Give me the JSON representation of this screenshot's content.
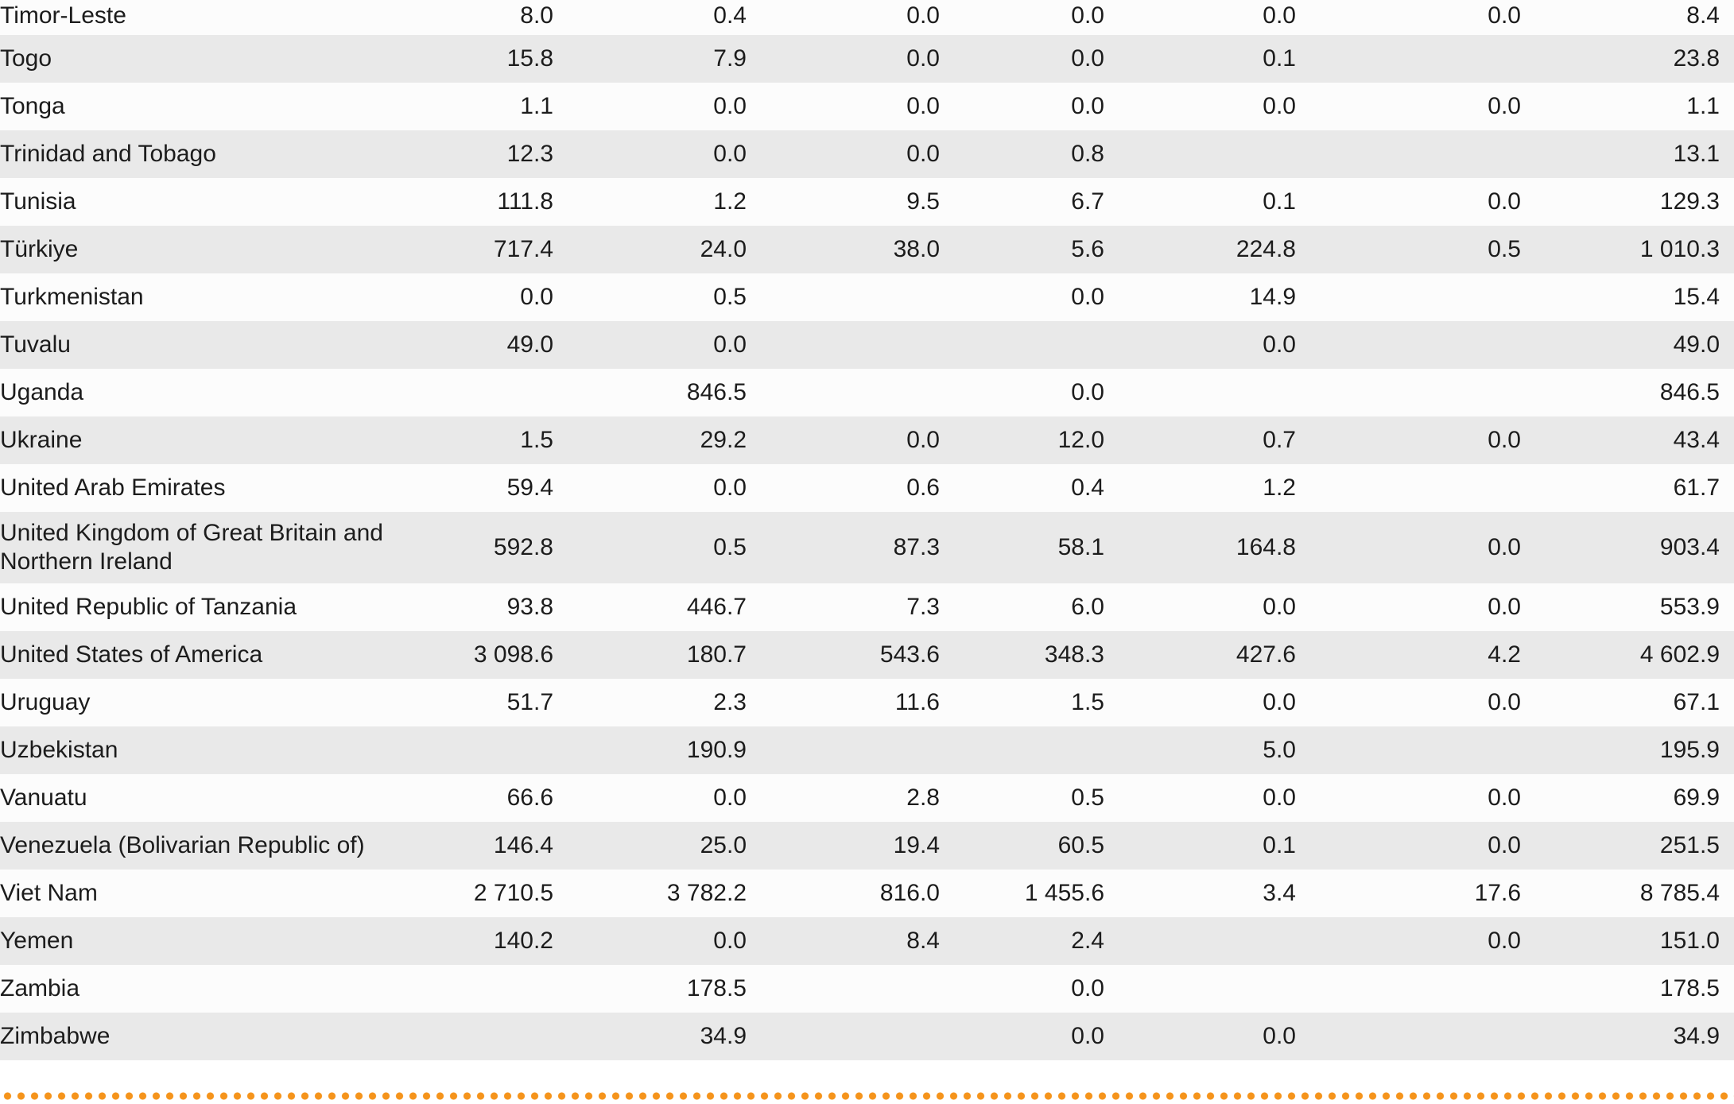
{
  "table": {
    "description": "Country data table, countries T–Z with seven right-aligned numeric columns (last column is a row total)",
    "rows": [
      {
        "country": "Timor-Leste",
        "values": [
          "8.0",
          "0.4",
          "0.0",
          "0.0",
          "0.0",
          "0.0",
          "8.4"
        ]
      },
      {
        "country": "Togo",
        "values": [
          "15.8",
          "7.9",
          "0.0",
          "0.0",
          "0.1",
          "",
          "23.8"
        ]
      },
      {
        "country": "Tonga",
        "values": [
          "1.1",
          "0.0",
          "0.0",
          "0.0",
          "0.0",
          "0.0",
          "1.1"
        ]
      },
      {
        "country": "Trinidad and Tobago",
        "values": [
          "12.3",
          "0.0",
          "0.0",
          "0.8",
          "",
          "",
          "13.1"
        ]
      },
      {
        "country": "Tunisia",
        "values": [
          "111.8",
          "1.2",
          "9.5",
          "6.7",
          "0.1",
          "0.0",
          "129.3"
        ]
      },
      {
        "country": "Türkiye",
        "values": [
          "717.4",
          "24.0",
          "38.0",
          "5.6",
          "224.8",
          "0.5",
          "1 010.3"
        ]
      },
      {
        "country": "Turkmenistan",
        "values": [
          "0.0",
          "0.5",
          "",
          "0.0",
          "14.9",
          "",
          "15.4"
        ]
      },
      {
        "country": "Tuvalu",
        "values": [
          "49.0",
          "0.0",
          "",
          "",
          "0.0",
          "",
          "49.0"
        ]
      },
      {
        "country": "Uganda",
        "values": [
          "",
          "846.5",
          "",
          "0.0",
          "",
          "",
          "846.5"
        ]
      },
      {
        "country": "Ukraine",
        "values": [
          "1.5",
          "29.2",
          "0.0",
          "12.0",
          "0.7",
          "0.0",
          "43.4"
        ]
      },
      {
        "country": "United Arab Emirates",
        "values": [
          "59.4",
          "0.0",
          "0.6",
          "0.4",
          "1.2",
          "",
          "61.7"
        ]
      },
      {
        "country": "United Kingdom of Great Britain and Northern Ireland",
        "values": [
          "592.8",
          "0.5",
          "87.3",
          "58.1",
          "164.8",
          "0.0",
          "903.4"
        ]
      },
      {
        "country": "United Republic of Tanzania",
        "values": [
          "93.8",
          "446.7",
          "7.3",
          "6.0",
          "0.0",
          "0.0",
          "553.9"
        ]
      },
      {
        "country": "United States of America",
        "values": [
          "3 098.6",
          "180.7",
          "543.6",
          "348.3",
          "427.6",
          "4.2",
          "4 602.9"
        ]
      },
      {
        "country": "Uruguay",
        "values": [
          "51.7",
          "2.3",
          "11.6",
          "1.5",
          "0.0",
          "0.0",
          "67.1"
        ]
      },
      {
        "country": "Uzbekistan",
        "values": [
          "",
          "190.9",
          "",
          "",
          "5.0",
          "",
          "195.9"
        ]
      },
      {
        "country": "Vanuatu",
        "values": [
          "66.6",
          "0.0",
          "2.8",
          "0.5",
          "0.0",
          "0.0",
          "69.9"
        ]
      },
      {
        "country": "Venezuela (Bolivarian Republic of)",
        "values": [
          "146.4",
          "25.0",
          "19.4",
          "60.5",
          "0.1",
          "0.0",
          "251.5"
        ]
      },
      {
        "country": "Viet Nam",
        "values": [
          "2 710.5",
          "3 782.2",
          "816.0",
          "1 455.6",
          "3.4",
          "17.6",
          "8 785.4"
        ]
      },
      {
        "country": "Yemen",
        "values": [
          "140.2",
          "0.0",
          "8.4",
          "2.4",
          "",
          "0.0",
          "151.0"
        ]
      },
      {
        "country": "Zambia",
        "values": [
          "",
          "178.5",
          "",
          "0.0",
          "",
          "",
          "178.5"
        ]
      },
      {
        "country": "Zimbabwe",
        "values": [
          "",
          "34.9",
          "",
          "0.0",
          "0.0",
          "",
          "34.9"
        ]
      }
    ]
  },
  "colors": {
    "stripe_gray": "#e9e9e9",
    "row_white": "#fcfcfc",
    "text": "#1c1c1c",
    "divider_dot_orange": "#f5941c"
  }
}
